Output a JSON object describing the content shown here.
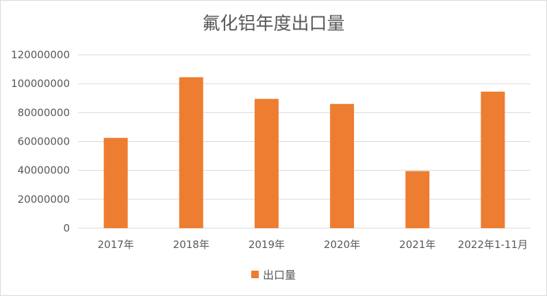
{
  "chart_data": {
    "type": "bar",
    "title": "氟化铝年度出口量",
    "categories": [
      "2017年",
      "2018年",
      "2019年",
      "2020年",
      "2021年",
      "2022年1-11月"
    ],
    "series": [
      {
        "name": "出口量",
        "values": [
          62500000,
          104500000,
          89500000,
          86000000,
          39500000,
          94500000
        ],
        "color": "#ED7D31"
      }
    ],
    "yticks": [
      "0",
      "20000000",
      "40000000",
      "60000000",
      "80000000",
      "100000000",
      "120000000"
    ],
    "ylim": [
      0,
      120000000
    ],
    "grid": true,
    "legend_position": "bottom"
  }
}
